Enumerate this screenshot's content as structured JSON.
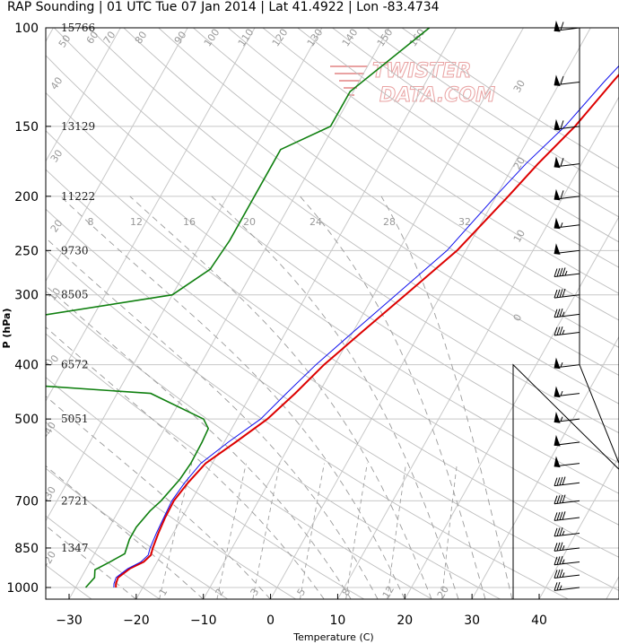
{
  "title": "RAP Sounding | 01 UTC Tue 07 Jan 2014 | Lat 41.4922 | Lon -83.4734",
  "watermark": [
    "TWISTER",
    "DATA.COM"
  ],
  "colors": {
    "temperature": "#dd0000",
    "virtual_temperature": "#1010ee",
    "dewpoint": "#108010",
    "reference": "#b0b0b0",
    "wind_barb": "#000000"
  },
  "chart_data": {
    "type": "line",
    "subtype": "skew-t log-p sounding",
    "xlabel": "Temperature (C)",
    "ylabel": "P (hPa)",
    "xlim": [
      -34,
      46
    ],
    "ylim": [
      1050,
      100
    ],
    "y_scale": "log",
    "grid": true,
    "pressure_ticks": [
      "100",
      "150",
      "200",
      "250",
      "300",
      "400",
      "500",
      "700",
      "850",
      "1000"
    ],
    "temperature_ticks": [
      "−30",
      "−20",
      "−10",
      "0",
      "10",
      "20",
      "30",
      "40"
    ],
    "height_labels": [
      {
        "p": 100,
        "text": "15766"
      },
      {
        "p": 150,
        "text": "13129"
      },
      {
        "p": 200,
        "text": "11222"
      },
      {
        "p": 250,
        "text": "9730"
      },
      {
        "p": 300,
        "text": "8505"
      },
      {
        "p": 400,
        "text": "6572"
      },
      {
        "p": 500,
        "text": "5051"
      },
      {
        "p": 700,
        "text": "2721"
      },
      {
        "p": 850,
        "text": "1347"
      }
    ],
    "series": [
      {
        "key": "temperature",
        "points": [
          [
            1000,
            -24.0
          ],
          [
            985,
            -24.3
          ],
          [
            960,
            -24.5
          ],
          [
            925,
            -23.5
          ],
          [
            900,
            -22.0
          ],
          [
            875,
            -21.5
          ],
          [
            850,
            -21.8
          ],
          [
            800,
            -22.2
          ],
          [
            750,
            -22.5
          ],
          [
            700,
            -22.6
          ],
          [
            650,
            -22.0
          ],
          [
            600,
            -21.0
          ],
          [
            550,
            -18.3
          ],
          [
            500,
            -15.5
          ],
          [
            450,
            -13.5
          ],
          [
            400,
            -11.6
          ],
          [
            350,
            -8.7
          ],
          [
            300,
            -5.3
          ],
          [
            250,
            -1.3
          ],
          [
            200,
            1.8
          ],
          [
            175,
            3.5
          ],
          [
            150,
            5.9
          ],
          [
            125,
            7.8
          ],
          [
            100,
            10.3
          ]
        ]
      },
      {
        "key": "virtual_temperature",
        "points": [
          [
            1000,
            -24.3
          ],
          [
            985,
            -24.6
          ],
          [
            960,
            -24.8
          ],
          [
            925,
            -23.8
          ],
          [
            900,
            -22.4
          ],
          [
            875,
            -21.9
          ],
          [
            850,
            -22.2
          ],
          [
            800,
            -22.5
          ],
          [
            750,
            -22.7
          ],
          [
            700,
            -22.9
          ],
          [
            650,
            -22.5
          ],
          [
            600,
            -21.7
          ],
          [
            550,
            -19.4
          ],
          [
            500,
            -16.5
          ],
          [
            450,
            -14.8
          ],
          [
            400,
            -12.8
          ],
          [
            350,
            -10.0
          ],
          [
            300,
            -6.7
          ],
          [
            250,
            -2.8
          ],
          [
            200,
            -0.1
          ],
          [
            175,
            1.7
          ],
          [
            150,
            4.4
          ],
          [
            125,
            6.5
          ],
          [
            100,
            9.5
          ]
        ]
      },
      {
        "key": "dewpoint",
        "points": [
          [
            1000,
            -28.5
          ],
          [
            960,
            -28.0
          ],
          [
            930,
            -28.6
          ],
          [
            900,
            -27.0
          ],
          [
            870,
            -25.5
          ],
          [
            820,
            -26.0
          ],
          [
            780,
            -26.0
          ],
          [
            730,
            -25.3
          ],
          [
            700,
            -24.5
          ],
          [
            640,
            -23.5
          ],
          [
            600,
            -23.2
          ],
          [
            550,
            -23.3
          ],
          [
            520,
            -23.5
          ],
          [
            500,
            -25.0
          ],
          [
            450,
            -35.0
          ],
          [
            430,
            -60
          ],
          [
            330,
            -60
          ],
          [
            300,
            -40
          ],
          [
            270,
            -36.5
          ],
          [
            240,
            -36.0
          ],
          [
            180,
            -36.0
          ],
          [
            165,
            -36.0
          ],
          [
            150,
            -30.5
          ],
          [
            130,
            -30.5
          ],
          [
            100,
            -24.0
          ]
        ]
      }
    ],
    "reference_lines": {
      "dry_adiabats_label_values": [
        "0",
        "10",
        "20",
        "30",
        "40",
        "50",
        "60",
        "70",
        "80",
        "90",
        "100",
        "110",
        "120",
        "130",
        "140",
        "150",
        "160"
      ],
      "moist_adiabats_label_values": [
        "8",
        "12",
        "16",
        "20",
        "24",
        "28",
        "32"
      ],
      "mixing_ratio_label_values": [
        "1",
        "2",
        "3",
        "5",
        "8",
        "12",
        "20"
      ],
      "isotherm_label_values": [
        "−40",
        "−30",
        "−20",
        "−10",
        "0",
        "10",
        "20",
        "30"
      ]
    },
    "wind_barbs": [
      {
        "p": 100,
        "dir": 265,
        "kt": 60
      },
      {
        "p": 125,
        "dir": 268,
        "kt": 60
      },
      {
        "p": 150,
        "dir": 268,
        "kt": 60
      },
      {
        "p": 175,
        "dir": 270,
        "kt": 60
      },
      {
        "p": 200,
        "dir": 270,
        "kt": 60
      },
      {
        "p": 225,
        "dir": 272,
        "kt": 55
      },
      {
        "p": 250,
        "dir": 272,
        "kt": 50
      },
      {
        "p": 275,
        "dir": 272,
        "kt": 45
      },
      {
        "p": 300,
        "dir": 272,
        "kt": 40
      },
      {
        "p": 325,
        "dir": 273,
        "kt": 35
      },
      {
        "p": 350,
        "dir": 273,
        "kt": 35
      },
      {
        "p": 400,
        "dir": 275,
        "kt": 55
      },
      {
        "p": 450,
        "dir": 275,
        "kt": 55
      },
      {
        "p": 500,
        "dir": 275,
        "kt": 55
      },
      {
        "p": 550,
        "dir": 278,
        "kt": 50
      },
      {
        "p": 600,
        "dir": 280,
        "kt": 50
      },
      {
        "p": 650,
        "dir": 282,
        "kt": 40
      },
      {
        "p": 700,
        "dir": 282,
        "kt": 40
      },
      {
        "p": 750,
        "dir": 282,
        "kt": 40
      },
      {
        "p": 800,
        "dir": 282,
        "kt": 35
      },
      {
        "p": 850,
        "dir": 282,
        "kt": 35
      },
      {
        "p": 900,
        "dir": 282,
        "kt": 35
      },
      {
        "p": 950,
        "dir": 282,
        "kt": 35
      },
      {
        "p": 1000,
        "dir": 285,
        "kt": 25
      }
    ]
  }
}
